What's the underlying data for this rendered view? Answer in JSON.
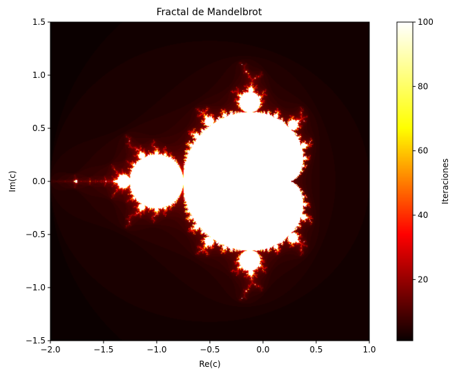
{
  "chart_data": {
    "type": "heatmap",
    "title": "Fractal de Mandelbrot",
    "xlabel": "Re(c)",
    "ylabel": "Im(c)",
    "xlim": [
      -2.0,
      1.0
    ],
    "ylim": [
      -1.5,
      1.5
    ],
    "x_ticks": [
      -2.0,
      -1.5,
      -1.0,
      -0.5,
      0.0,
      0.5,
      1.0
    ],
    "x_tick_labels": [
      "−2.0",
      "−1.5",
      "−1.0",
      "−0.5",
      "0.0",
      "0.5",
      "1.0"
    ],
    "y_ticks": [
      -1.5,
      -1.0,
      -0.5,
      0.0,
      0.5,
      1.0,
      1.5
    ],
    "y_tick_labels": [
      "−1.5",
      "−1.0",
      "−0.5",
      "0.0",
      "0.5",
      "1.0",
      "1.5"
    ],
    "grid": false,
    "values": "escape-iteration count of z → z² + c, z₀ = 0, capped at max_iter",
    "max_iter": 100,
    "colormap": "hot",
    "colormap_stops": [
      "#0b0000",
      "#ff0000",
      "#ffff00",
      "#ffffff"
    ],
    "colorbar": {
      "label": "Iteraciones",
      "range": [
        1,
        100
      ],
      "ticks": [
        20,
        40,
        60,
        80,
        100
      ],
      "tick_labels": [
        "20",
        "40",
        "60",
        "80",
        "100"
      ],
      "position": "right"
    }
  }
}
